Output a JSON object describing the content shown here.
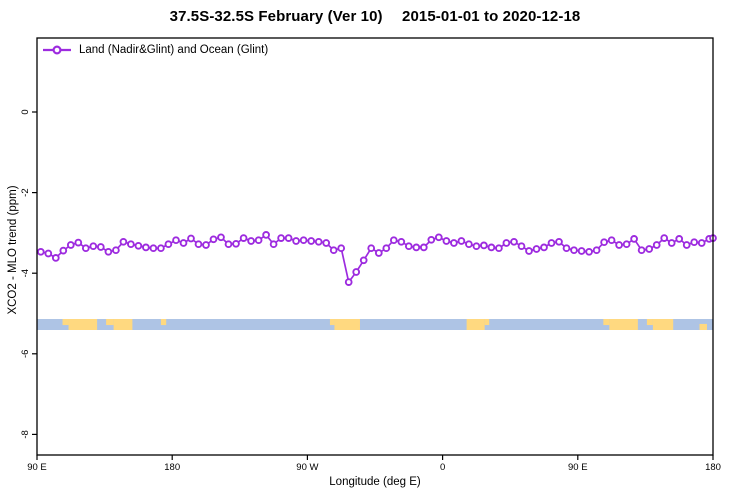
{
  "title": "37.5S-32.5S February (Ver 10)  2015-01-01 to 2020-12-18",
  "legend": {
    "label": "Land (Nadir&Glint) and Ocean (Glint)"
  },
  "colors": {
    "line": "#9d2bdf",
    "marker_fill": "#ffffff",
    "ocean": "#aec4e5",
    "land": "#ffd980",
    "axis": "#000000"
  },
  "axes": {
    "x": {
      "title": "Longitude (deg E)",
      "ticks": [
        {
          "value": 90,
          "label": "90 E"
        },
        {
          "value": 180,
          "label": "180"
        },
        {
          "value": 270,
          "label": "90 W"
        },
        {
          "value": 360,
          "label": "0"
        },
        {
          "value": 450,
          "label": "90 E"
        },
        {
          "value": 540,
          "label": "180"
        }
      ]
    },
    "y": {
      "title": "XCO2 - MLO trend (ppm)",
      "ticks": [
        {
          "value": 0,
          "label": "0"
        },
        {
          "value": -2,
          "label": "-2"
        },
        {
          "value": -4,
          "label": "-4"
        },
        {
          "value": -6,
          "label": "-6"
        },
        {
          "value": -8,
          "label": "-8"
        }
      ]
    }
  },
  "map_strip": {
    "ocean_color": "#aec4e5",
    "land_color": "#ffd980",
    "land_patches": [
      {
        "from": 107,
        "to": 111,
        "part": "top"
      },
      {
        "from": 111,
        "to": 130,
        "part": "full"
      },
      {
        "from": 136,
        "to": 141,
        "part": "top"
      },
      {
        "from": 141,
        "to": 153.5,
        "part": "full"
      },
      {
        "from": 172.5,
        "to": 176,
        "part": "top"
      },
      {
        "from": 285,
        "to": 288,
        "part": "top"
      },
      {
        "from": 288,
        "to": 305,
        "part": "full"
      },
      {
        "from": 376,
        "to": 388,
        "part": "full"
      },
      {
        "from": 388,
        "to": 391,
        "part": "top"
      },
      {
        "from": 467,
        "to": 471,
        "part": "top"
      },
      {
        "from": 471,
        "to": 490,
        "part": "full"
      },
      {
        "from": 496,
        "to": 500,
        "part": "top"
      },
      {
        "from": 500,
        "to": 513.5,
        "part": "full"
      },
      {
        "from": 531,
        "to": 536,
        "part": "bottom"
      }
    ]
  },
  "chart_data": {
    "type": "line",
    "title": "37.5S-32.5S February (Ver 10)  2015-01-01 to 2020-12-18",
    "xlabel": "Longitude (deg E)",
    "ylabel": "XCO2 - MLO trend (ppm)",
    "xlim": [
      90,
      540
    ],
    "ylim": [
      -8.5,
      1.85
    ],
    "legend_position": "top-left",
    "grid": false,
    "series": [
      {
        "name": "Land (Nadir&Glint) and Ocean (Glint)",
        "marker": "open-circle",
        "x": [
          92.5,
          97.5,
          102.5,
          107.5,
          112.5,
          117.5,
          122.5,
          127.5,
          132.5,
          137.5,
          142.5,
          147.5,
          152.5,
          157.5,
          162.5,
          167.5,
          172.5,
          177.5,
          182.5,
          187.5,
          192.5,
          197.5,
          202.5,
          207.5,
          212.5,
          217.5,
          222.5,
          227.5,
          232.5,
          237.5,
          242.5,
          247.5,
          252.5,
          257.5,
          262.5,
          267.5,
          272.5,
          277.5,
          282.5,
          287.5,
          292.5,
          297.5,
          302.5,
          307.5,
          312.5,
          317.5,
          322.5,
          327.5,
          332.5,
          337.5,
          342.5,
          347.5,
          352.5,
          357.5,
          362.5,
          367.5,
          372.5,
          377.5,
          382.5,
          387.5,
          392.5,
          397.5,
          402.5,
          407.5,
          412.5,
          417.5,
          422.5,
          427.5,
          432.5,
          437.5,
          442.5,
          447.5,
          452.5,
          457.5,
          462.5,
          467.5,
          472.5,
          477.5,
          482.5,
          487.5,
          492.5,
          497.5,
          502.5,
          507.5,
          512.5,
          517.5,
          522.5,
          527.5,
          532.5,
          537.5,
          540
        ],
        "y": [
          -3.47,
          -3.51,
          -3.62,
          -3.44,
          -3.3,
          -3.24,
          -3.38,
          -3.33,
          -3.35,
          -3.47,
          -3.43,
          -3.22,
          -3.28,
          -3.32,
          -3.36,
          -3.38,
          -3.38,
          -3.28,
          -3.18,
          -3.25,
          -3.14,
          -3.28,
          -3.3,
          -3.16,
          -3.11,
          -3.28,
          -3.27,
          -3.13,
          -3.2,
          -3.18,
          -3.05,
          -3.28,
          -3.13,
          -3.13,
          -3.2,
          -3.18,
          -3.2,
          -3.22,
          -3.25,
          -3.43,
          -3.38,
          -4.22,
          -3.97,
          -3.68,
          -3.38,
          -3.5,
          -3.38,
          -3.18,
          -3.22,
          -3.33,
          -3.36,
          -3.36,
          -3.17,
          -3.11,
          -3.2,
          -3.25,
          -3.2,
          -3.28,
          -3.33,
          -3.31,
          -3.36,
          -3.38,
          -3.25,
          -3.22,
          -3.33,
          -3.45,
          -3.4,
          -3.36,
          -3.25,
          -3.22,
          -3.38,
          -3.43,
          -3.45,
          -3.47,
          -3.43,
          -3.23,
          -3.18,
          -3.3,
          -3.28,
          -3.15,
          -3.43,
          -3.4,
          -3.3,
          -3.13,
          -3.25,
          -3.15,
          -3.3,
          -3.23,
          -3.25,
          -3.15,
          -3.13
        ]
      }
    ]
  }
}
